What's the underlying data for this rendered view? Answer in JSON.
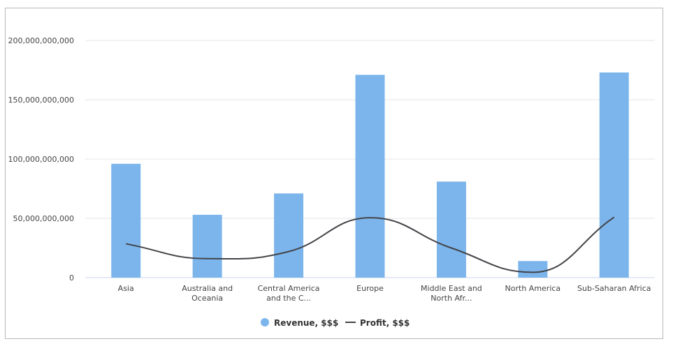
{
  "chart_data": {
    "type": "bar",
    "categories": [
      "Asia",
      "Australia and Oceania",
      "Central America and the C...",
      "Europe",
      "Middle East and North Afr...",
      "North America",
      "Sub-Saharan Africa"
    ],
    "category_lines": [
      [
        "Asia"
      ],
      [
        "Australia and",
        "Oceania"
      ],
      [
        "Central America",
        "and the C..."
      ],
      [
        "Europe"
      ],
      [
        "Middle East and",
        "North Afr..."
      ],
      [
        "North America"
      ],
      [
        "Sub-Saharan Africa"
      ]
    ],
    "series": [
      {
        "name": "Revenue, $$$",
        "type": "bar",
        "color": "#7cb5ec",
        "values": [
          96000000000,
          53000000000,
          71000000000,
          171000000000,
          81000000000,
          14000000000,
          173000000000
        ]
      },
      {
        "name": "Profit, $$$",
        "type": "spline",
        "color": "#434348",
        "values": [
          28500000000,
          16000000000,
          22000000000,
          50500000000,
          25000000000,
          4500000000,
          51000000000
        ]
      }
    ],
    "yticks": [
      0,
      50000000000,
      100000000000,
      150000000000,
      200000000000
    ],
    "ytick_labels": [
      "0",
      "50,000,000,000",
      "100,000,000,000",
      "150,000,000,000",
      "200,000,000,000"
    ],
    "ylim": [
      0,
      200000000000
    ],
    "grid": true,
    "legend_position": "bottom-center"
  }
}
